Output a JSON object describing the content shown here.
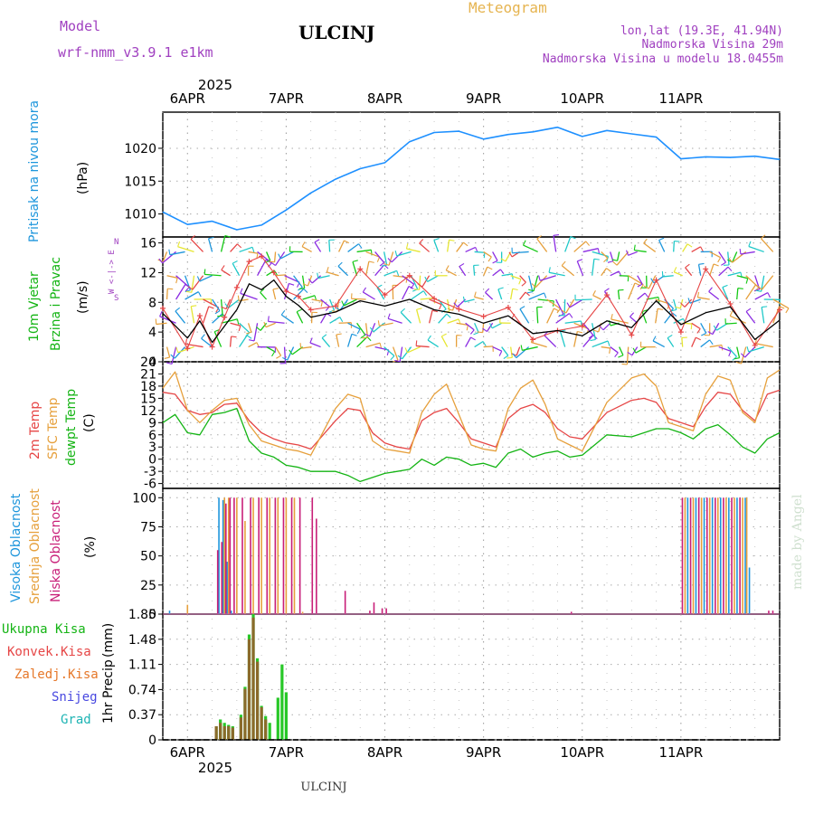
{
  "header": {
    "model_label": "Model",
    "model_name": "wrf-nmm_v3.9.1 e1km",
    "station": "ULCINJ",
    "meteogram": "Meteogram",
    "coords": "lon,lat (19.3E, 41.94N)",
    "elevation": "Nadmorska Visina 29m",
    "model_elevation": "Nadmorska Visina u modelu 18.0455m",
    "year": "2025",
    "footer_station": "ULCINJ",
    "credit": "made by Angel"
  },
  "colors": {
    "pressure": "#1e90ff",
    "temp2m": "#e64646",
    "sfc": "#e6a03c",
    "dewpt": "#14b414",
    "high_cloud": "#1e96dc",
    "mid_cloud": "#e6a03c",
    "low_cloud": "#c81e78",
    "purple_text": "#a040c0",
    "meteogram": "#e6b450"
  },
  "x_axis": {
    "day_labels": [
      "6APR",
      "7APR",
      "8APR",
      "9APR",
      "10APR",
      "11APR"
    ]
  },
  "chart_data": [
    {
      "id": "pressure",
      "type": "line",
      "ylabel_left": "Pritisak na nivou mora",
      "unit": "(hPa)",
      "yticks": [
        "1010",
        "1015",
        "1020"
      ],
      "ylim": [
        1006.5,
        1025.5
      ],
      "x": [
        0,
        6,
        12,
        18,
        24,
        30,
        36,
        42,
        48,
        54,
        60,
        66,
        72,
        78,
        84,
        90,
        96,
        102,
        108,
        114,
        120,
        126,
        132,
        138,
        144,
        150
      ],
      "values": [
        1010.3,
        1008.4,
        1008.9,
        1007.6,
        1008.3,
        1010.6,
        1013.2,
        1015.3,
        1016.9,
        1017.8,
        1021.0,
        1022.4,
        1022.6,
        1021.4,
        1022.1,
        1022.5,
        1023.2,
        1021.8,
        1022.7,
        1022.2,
        1021.7,
        1018.4,
        1018.7,
        1018.6,
        1018.8,
        1018.3
      ]
    },
    {
      "id": "wind",
      "type": "line",
      "ylabel_left": "10m Vjetar",
      "ylabel_left2": "Brzina i Pravac",
      "unit": "(m/s)",
      "compass": "W <-|-> E",
      "compass_s": "S",
      "compass_n": "N",
      "yticks": [
        "0",
        "4",
        "8",
        "12",
        "16"
      ],
      "ylim": [
        0,
        16.8
      ],
      "x": [
        0,
        6,
        9,
        12,
        15,
        18,
        21,
        24,
        27,
        30,
        33,
        36,
        42,
        48,
        54,
        60,
        66,
        72,
        78,
        84,
        90,
        96,
        102,
        108,
        114,
        120,
        126,
        132,
        138,
        144,
        150
      ],
      "values": [
        6.5,
        3.2,
        5.5,
        2.6,
        4.8,
        7.0,
        10.5,
        9.7,
        11.0,
        8.8,
        7.6,
        6.0,
        6.7,
        8.2,
        7.5,
        8.4,
        7.0,
        6.4,
        5.2,
        6.2,
        3.8,
        4.2,
        3.5,
        5.5,
        4.6,
        8.2,
        5.0,
        6.6,
        7.4,
        3.0,
        5.6
      ],
      "gust_x": [
        0,
        6,
        9,
        12,
        15,
        18,
        21,
        24,
        27,
        30,
        33,
        36,
        42,
        48,
        54,
        60,
        66,
        72,
        78,
        84,
        90,
        96,
        102,
        108,
        114,
        120,
        126,
        132,
        138,
        144,
        150
      ],
      "gust_values": [
        7.2,
        1.8,
        6.2,
        2.0,
        6.0,
        10.0,
        13.5,
        14.2,
        12.0,
        9.5,
        8.8,
        7.0,
        7.5,
        12.5,
        9.0,
        11.6,
        8.5,
        7.1,
        6.1,
        7.3,
        3.0,
        4.2,
        4.8,
        9.0,
        3.6,
        11.0,
        4.0,
        12.5,
        7.8,
        2.2,
        7.0
      ]
    },
    {
      "id": "temperature",
      "type": "line",
      "ylabel_left": "2m Temp",
      "ylabel_left2": "SFC Temp",
      "ylabel_left3": "dewpt Temp",
      "unit": "(C)",
      "yticks": [
        "-6",
        "-3",
        "0",
        "3",
        "6",
        "9",
        "12",
        "15",
        "18",
        "21",
        "24"
      ],
      "ylim": [
        -7.2,
        24
      ],
      "series": [
        {
          "name": "2m Temp",
          "x": [
            0,
            3,
            6,
            9,
            12,
            15,
            18,
            21,
            24,
            27,
            30,
            33,
            36,
            42,
            45,
            48,
            51,
            54,
            57,
            60,
            63,
            66,
            69,
            72,
            75,
            78,
            81,
            84,
            87,
            90,
            93,
            96,
            99,
            102,
            108,
            114,
            117,
            120,
            123,
            126,
            129,
            132,
            135,
            138,
            141,
            144,
            147,
            150
          ],
          "values": [
            16.5,
            16.0,
            12.0,
            11.0,
            11.5,
            13.5,
            13.8,
            9.5,
            6.5,
            5.0,
            4.0,
            3.5,
            2.5,
            9.5,
            12.5,
            12.0,
            6.5,
            4.0,
            3.0,
            2.5,
            9.5,
            11.5,
            12.5,
            9.0,
            5.0,
            4.0,
            3.0,
            10.0,
            12.5,
            13.5,
            11.5,
            7.5,
            5.5,
            5.0,
            11.5,
            14.5,
            15.0,
            14.0,
            10.0,
            9.0,
            8.0,
            13.0,
            16.5,
            16.0,
            12.0,
            9.5,
            16.0,
            17.0
          ]
        },
        {
          "name": "SFC Temp",
          "x": [
            0,
            3,
            6,
            9,
            12,
            15,
            18,
            21,
            24,
            27,
            30,
            33,
            36,
            42,
            45,
            48,
            51,
            54,
            57,
            60,
            63,
            66,
            69,
            72,
            75,
            78,
            81,
            84,
            87,
            90,
            93,
            96,
            99,
            102,
            108,
            114,
            117,
            120,
            123,
            126,
            129,
            132,
            135,
            138,
            141,
            144,
            147,
            150
          ],
          "values": [
            17.5,
            21.5,
            12.0,
            9.0,
            12.0,
            14.5,
            15.0,
            8.5,
            4.5,
            3.5,
            2.5,
            2.0,
            1.0,
            12.5,
            16.0,
            15.0,
            4.5,
            2.5,
            2.0,
            1.5,
            11.5,
            16.0,
            18.5,
            11.0,
            3.5,
            2.5,
            2.0,
            12.5,
            17.5,
            19.5,
            13.5,
            5.0,
            3.5,
            2.0,
            14.0,
            20.0,
            21.0,
            18.0,
            9.0,
            8.0,
            7.0,
            16.0,
            20.5,
            19.5,
            11.5,
            9.0,
            20.0,
            22.0
          ]
        },
        {
          "name": "dewpt Temp",
          "x": [
            0,
            3,
            6,
            9,
            12,
            15,
            18,
            21,
            24,
            27,
            30,
            33,
            36,
            42,
            45,
            48,
            51,
            54,
            57,
            60,
            63,
            66,
            69,
            72,
            75,
            78,
            81,
            84,
            87,
            90,
            93,
            96,
            99,
            102,
            108,
            114,
            117,
            120,
            123,
            126,
            129,
            132,
            135,
            138,
            141,
            144,
            147,
            150
          ],
          "values": [
            9.0,
            11.0,
            6.5,
            6.0,
            11.0,
            11.5,
            12.5,
            4.5,
            1.5,
            0.5,
            -1.5,
            -2.0,
            -3.0,
            -3.0,
            -4.0,
            -5.5,
            -4.5,
            -3.5,
            -3.0,
            -2.5,
            0.0,
            -1.5,
            0.5,
            0.0,
            -1.5,
            -1.0,
            -2.0,
            1.5,
            2.5,
            0.5,
            1.5,
            2.0,
            0.5,
            1.0,
            6.0,
            5.5,
            6.5,
            7.5,
            7.5,
            6.5,
            5.0,
            7.5,
            8.5,
            6.0,
            3.0,
            1.5,
            5.0,
            6.5
          ]
        }
      ]
    },
    {
      "id": "clouds",
      "type": "bar",
      "ylabel_left": "Visoka Oblacnost",
      "ylabel_left2": "Srednja Oblacnost",
      "ylabel_left3": "Niska Oblacnost",
      "unit": "(%)",
      "yticks": [
        "0",
        "25",
        "50",
        "75",
        "100"
      ],
      "ylim": [
        0,
        108
      ],
      "series": [
        {
          "name": "Visoka Oblacnost",
          "x": [
            2,
            14,
            15,
            16,
            17,
            128,
            130,
            132,
            134,
            136,
            138,
            140,
            142,
            143
          ],
          "values": [
            3,
            100,
            98,
            45,
            3,
            100,
            100,
            100,
            100,
            100,
            100,
            100,
            100,
            40
          ]
        },
        {
          "name": "Srednja Oblacnost",
          "x": [
            6,
            15,
            16,
            18,
            20,
            22,
            24,
            26,
            28,
            30,
            32,
            34,
            127,
            129,
            131,
            133,
            135,
            137,
            139,
            141,
            142
          ],
          "values": [
            8,
            100,
            100,
            100,
            80,
            100,
            100,
            100,
            100,
            100,
            100,
            2,
            100,
            100,
            100,
            100,
            100,
            100,
            100,
            100,
            100
          ]
        },
        {
          "name": "Niska Oblacnost",
          "x": [
            13,
            14,
            15,
            16,
            17,
            19,
            21,
            23,
            25,
            27,
            29,
            31,
            33,
            36,
            37,
            44,
            50,
            51,
            53,
            54,
            99,
            126,
            128,
            130,
            132,
            134,
            136,
            138,
            140,
            147,
            148
          ],
          "values": [
            55,
            62,
            95,
            100,
            100,
            100,
            100,
            100,
            100,
            100,
            100,
            100,
            100,
            100,
            82,
            20,
            3,
            10,
            5,
            5,
            2,
            100,
            100,
            100,
            100,
            100,
            100,
            100,
            100,
            3,
            3
          ]
        }
      ]
    },
    {
      "id": "precip",
      "type": "bar",
      "ylabel_left": "1hr Precip",
      "unit": "(mm)",
      "legend": [
        "Ukupna Kisa",
        "Konvek.Kisa",
        "Zaledj.Kisa",
        "Snijeg",
        "Grad"
      ],
      "yticks": [
        "0",
        "0.37",
        "0.74",
        "1.11",
        "1.48",
        "1.85"
      ],
      "ylim": [
        0,
        1.85
      ],
      "series": [
        {
          "name": "Ukupna Kisa",
          "x": [
            13.0,
            14.0,
            15.0,
            16.0,
            17.0,
            19.0,
            20.0,
            21.0,
            22.0,
            23.0,
            24.0,
            25.0,
            26.0,
            28.0,
            29.0,
            30.0
          ],
          "values": [
            0.2,
            0.3,
            0.25,
            0.22,
            0.2,
            0.37,
            0.78,
            1.55,
            1.85,
            1.2,
            0.5,
            0.35,
            0.25,
            0.62,
            1.11,
            0.7
          ]
        },
        {
          "name": "Konvek.Kisa",
          "x": [
            13.0,
            14.0,
            15.0,
            16.0,
            17.0,
            19.0,
            20.0,
            21.0,
            22.0,
            23.0,
            24.0,
            25.0
          ],
          "values": [
            0.2,
            0.25,
            0.2,
            0.2,
            0.18,
            0.33,
            0.75,
            1.48,
            1.8,
            1.15,
            0.48,
            0.3
          ]
        }
      ]
    }
  ]
}
